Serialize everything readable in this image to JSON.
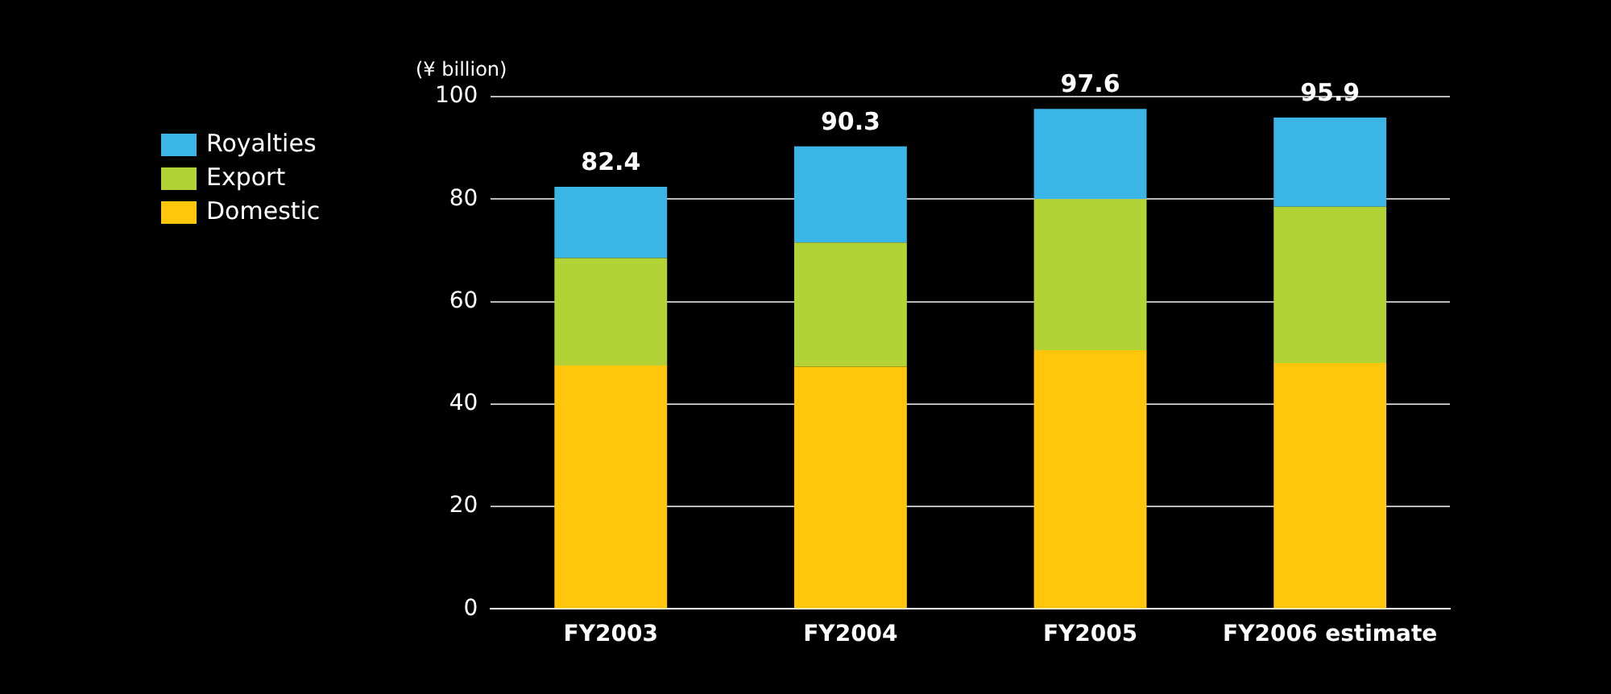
{
  "chart_data": {
    "type": "bar",
    "ylabel": "(¥ billion)",
    "categories": [
      "FY2003",
      "FY2004",
      "FY2005",
      "FY2006 estimate"
    ],
    "stacked": true,
    "series": [
      {
        "name": "Domestic",
        "color": "#ffc60b",
        "values": [
          47.5,
          47.3,
          50.5,
          48
        ]
      },
      {
        "name": "Export",
        "color": "#b2d235",
        "values": [
          21,
          24.2,
          29.5,
          30.5
        ]
      },
      {
        "name": "Royalties",
        "color": "#3bb4e6",
        "values": [
          13.9,
          18.8,
          17.6,
          17.4
        ]
      }
    ],
    "totals": [
      "82.4",
      "90.3",
      "97.6",
      "95.9"
    ],
    "ylim": [
      0,
      100
    ],
    "yticks": [
      0,
      20,
      40,
      60,
      80,
      100
    ],
    "grid": "y",
    "legend": "top left"
  }
}
